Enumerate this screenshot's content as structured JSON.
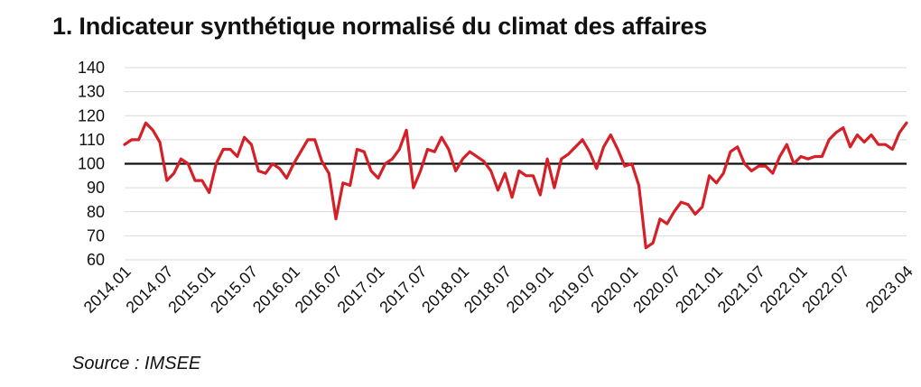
{
  "chart_data": {
    "type": "line",
    "title": "1. Indicateur synthétique normalisé du climat des affaires",
    "source": "Source : IMSEE",
    "ylim": [
      60,
      140
    ],
    "yticks": [
      60,
      70,
      80,
      90,
      100,
      110,
      120,
      130,
      140
    ],
    "xticks": [
      "2014.01",
      "2014.07",
      "2015.01",
      "2015.07",
      "2016.01",
      "2016.07",
      "2017.01",
      "2017.07",
      "2018.01",
      "2018.07",
      "2019.01",
      "2019.07",
      "2020.01",
      "2020.07",
      "2021.01",
      "2021.07",
      "2022.01",
      "2022.07",
      "2023.04"
    ],
    "reference_line": 100,
    "grid": true,
    "colors": {
      "series": "#d42026",
      "reference": "#111111",
      "grid": "#d9d9d9"
    },
    "x": [
      "2014.01",
      "2014.02",
      "2014.03",
      "2014.04",
      "2014.05",
      "2014.06",
      "2014.07",
      "2014.08",
      "2014.09",
      "2014.10",
      "2014.11",
      "2014.12",
      "2015.01",
      "2015.02",
      "2015.03",
      "2015.04",
      "2015.05",
      "2015.06",
      "2015.07",
      "2015.08",
      "2015.09",
      "2015.10",
      "2015.11",
      "2015.12",
      "2016.01",
      "2016.02",
      "2016.03",
      "2016.04",
      "2016.05",
      "2016.06",
      "2016.07",
      "2016.08",
      "2016.09",
      "2016.10",
      "2016.11",
      "2016.12",
      "2017.01",
      "2017.02",
      "2017.03",
      "2017.04",
      "2017.05",
      "2017.06",
      "2017.07",
      "2017.08",
      "2017.09",
      "2017.10",
      "2017.11",
      "2017.12",
      "2018.01",
      "2018.02",
      "2018.03",
      "2018.04",
      "2018.05",
      "2018.06",
      "2018.07",
      "2018.08",
      "2018.09",
      "2018.10",
      "2018.11",
      "2018.12",
      "2019.01",
      "2019.02",
      "2019.03",
      "2019.04",
      "2019.05",
      "2019.06",
      "2019.07",
      "2019.08",
      "2019.09",
      "2019.10",
      "2019.11",
      "2019.12",
      "2020.01",
      "2020.02",
      "2020.03",
      "2020.04",
      "2020.05",
      "2020.06",
      "2020.07",
      "2020.08",
      "2020.09",
      "2020.10",
      "2020.11",
      "2020.12",
      "2021.01",
      "2021.02",
      "2021.03",
      "2021.04",
      "2021.05",
      "2021.06",
      "2021.07",
      "2021.08",
      "2021.09",
      "2021.10",
      "2021.11",
      "2021.12",
      "2022.01",
      "2022.02",
      "2022.03",
      "2022.04",
      "2022.05",
      "2022.06",
      "2022.07",
      "2022.08",
      "2022.09",
      "2022.10",
      "2022.11",
      "2022.12",
      "2023.01",
      "2023.02",
      "2023.03",
      "2023.04"
    ],
    "series": [
      {
        "values": [
          108,
          110,
          110,
          117,
          114,
          109,
          93,
          96,
          102,
          100,
          93,
          93,
          88,
          100,
          106,
          106,
          103,
          111,
          108,
          97,
          96,
          100,
          98,
          94,
          100,
          105,
          110,
          110,
          101,
          96,
          77,
          92,
          91,
          106,
          105,
          97,
          94,
          100,
          102,
          106,
          114,
          90,
          97,
          106,
          105,
          111,
          106,
          97,
          102,
          105,
          103,
          101,
          97,
          89,
          96,
          86,
          97,
          95,
          95,
          87,
          102,
          90,
          102,
          104,
          107,
          110,
          105,
          98,
          107,
          112,
          106,
          99,
          100,
          91,
          65,
          67,
          77,
          75,
          80,
          84,
          83,
          79,
          82,
          95,
          92,
          96,
          105,
          107,
          100,
          97,
          99,
          99,
          96,
          103,
          108,
          100,
          103,
          102,
          103,
          103,
          110,
          113,
          115,
          107,
          112,
          109,
          112,
          108,
          108,
          106,
          113,
          117
        ]
      }
    ]
  }
}
